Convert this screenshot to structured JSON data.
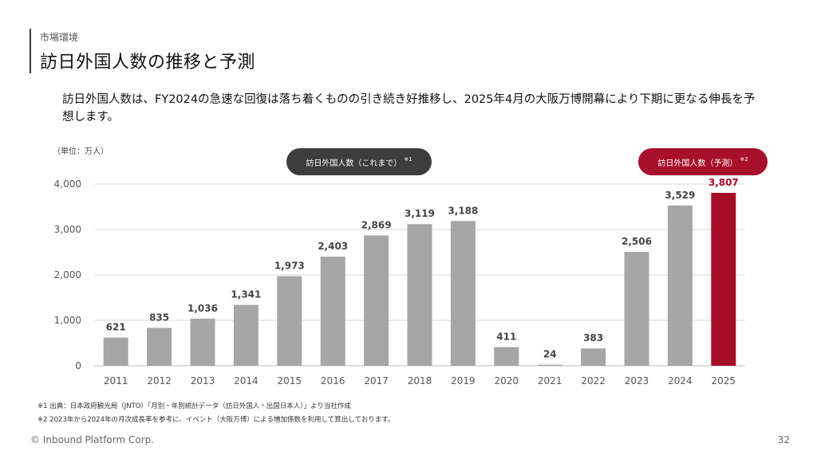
{
  "header": {
    "section": "市場環境",
    "title": "訪日外国人数の推移と予測"
  },
  "summary": "訪日外国人数は、FY2024の急速な回復は落ち着くものの引き続き好推移し、2025年4月の大阪万博開幕により下期に更なる伸長を予想します。",
  "unit_note": "（単位：万人）",
  "pills": {
    "actual": {
      "label": "訪日外国人数（これまで）",
      "mark": "※1",
      "color": "#3d3d3d"
    },
    "forecast": {
      "label": "訪日外国人数（予測）",
      "mark": "※2",
      "color": "#a80f2b"
    }
  },
  "chart_data": {
    "type": "bar",
    "categories": [
      "2011",
      "2012",
      "2013",
      "2014",
      "2015",
      "2016",
      "2017",
      "2018",
      "2019",
      "2020",
      "2021",
      "2022",
      "2023",
      "2024",
      "2025"
    ],
    "values": [
      621,
      835,
      1036,
      1341,
      1973,
      2403,
      2869,
      3119,
      3188,
      411,
      24,
      383,
      2506,
      3529,
      3807
    ],
    "value_labels": [
      "621",
      "835",
      "1,036",
      "1,341",
      "1,973",
      "2,403",
      "2,869",
      "3,119",
      "3,188",
      "411",
      "24",
      "383",
      "2,506",
      "3,529",
      "3,807"
    ],
    "highlight": [
      false,
      false,
      false,
      false,
      false,
      false,
      false,
      false,
      false,
      false,
      false,
      false,
      false,
      false,
      true
    ],
    "ylim": [
      0,
      4000
    ],
    "yticks": [
      0,
      1000,
      2000,
      3000,
      4000
    ],
    "ytick_labels": [
      "0",
      "1,000",
      "2,000",
      "3,000",
      "4,000"
    ],
    "grid": true,
    "colors": {
      "actual": "#a6a6a6",
      "forecast": "#a50d27",
      "forecast_label": "#a50d27",
      "label": "#444444",
      "grid": "#d9d9d9"
    }
  },
  "notes": [
    "※1 出典：日本政府観光局（JNTO）「月別・年別統計データ（訪日外国人・出国日本人）」より当社作成",
    "※2 2023年から2024年の月次成長率を参考に、イベント（大阪万博）による増加係数を利用して算出しております。"
  ],
  "footer": {
    "copyright": "© Inbound Platform Corp.",
    "page": "32"
  }
}
